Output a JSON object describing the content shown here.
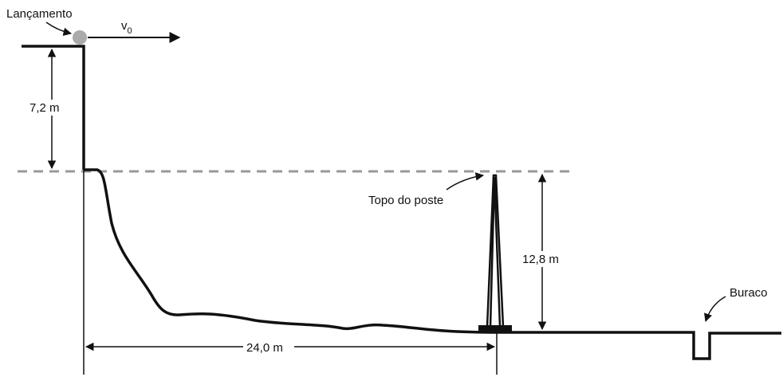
{
  "labels": {
    "launch": "Lançamento",
    "velocity": {
      "symbol": "v",
      "subscript": "0"
    },
    "cliff_height": "7,2 m",
    "pole_top": "Topo do poste",
    "pole_height": "12,8 m",
    "distance": "24,0 m",
    "hole": "Buraco"
  }
}
